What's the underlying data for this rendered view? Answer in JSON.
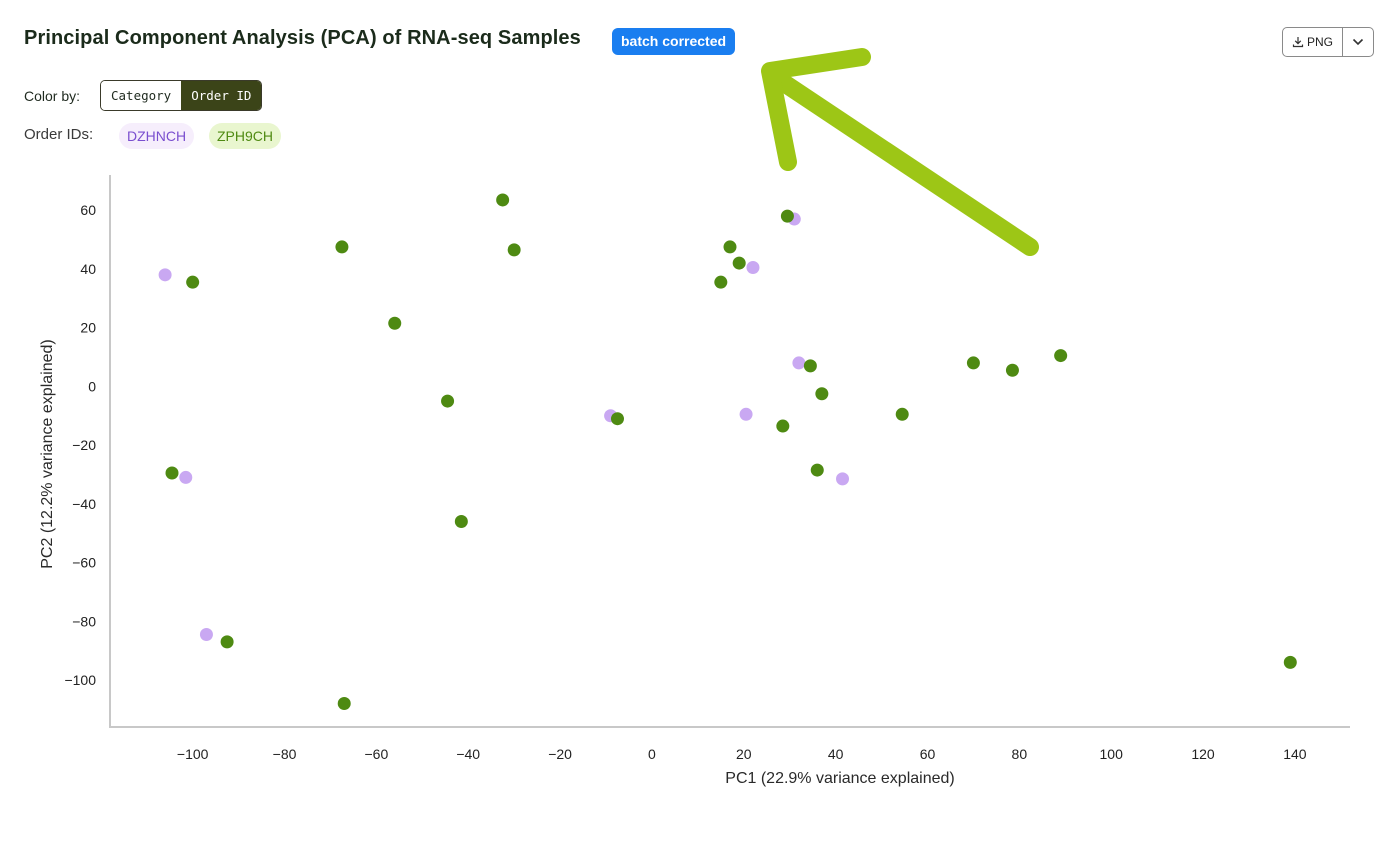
{
  "header": {
    "title": "Principal Component Analysis (PCA) of RNA-seq Samples",
    "badge": "batch corrected",
    "export_label": "PNG"
  },
  "controls": {
    "color_by_label": "Color by:",
    "options": [
      "Category",
      "Order ID"
    ],
    "selected": "Order ID",
    "order_ids_label": "Order IDs:",
    "order_ids": [
      {
        "label": "DZHNCH",
        "color": "#c9a8f2"
      },
      {
        "label": "ZPH9CH",
        "color": "#4e8a12"
      }
    ]
  },
  "annotation": {
    "arrow_color": "#9dc616"
  },
  "chart_data": {
    "type": "scatter",
    "xlabel": "PC1 (22.9% variance explained)",
    "ylabel": "PC2 (12.2% variance explained)",
    "xlim": [
      -118,
      152
    ],
    "ylim": [
      -116,
      72
    ],
    "xticks": [
      -100,
      -80,
      -60,
      -40,
      -20,
      0,
      20,
      40,
      60,
      80,
      100,
      120,
      140
    ],
    "yticks": [
      60,
      40,
      20,
      0,
      -20,
      -40,
      -60,
      -80,
      -100
    ],
    "series": [
      {
        "name": "DZHNCH",
        "color": "#c9a8f2",
        "points": [
          [
            -106,
            38
          ],
          [
            -101.5,
            -31
          ],
          [
            -97,
            -84.5
          ],
          [
            -9,
            -10
          ],
          [
            20.5,
            -9.5
          ],
          [
            22,
            40.5
          ],
          [
            31,
            57
          ],
          [
            32,
            8
          ],
          [
            41.5,
            -31.5
          ]
        ]
      },
      {
        "name": "ZPH9CH",
        "color": "#4e8a12",
        "points": [
          [
            -100,
            35.5
          ],
          [
            -104.5,
            -29.5
          ],
          [
            -92.5,
            -87
          ],
          [
            -67.5,
            47.5
          ],
          [
            -67,
            -108
          ],
          [
            -56,
            21.5
          ],
          [
            -44.5,
            -5
          ],
          [
            -41.5,
            -46
          ],
          [
            -32.5,
            63.5
          ],
          [
            -30,
            46.5
          ],
          [
            -7.5,
            -11
          ],
          [
            15,
            35.5
          ],
          [
            17,
            47.5
          ],
          [
            19,
            42
          ],
          [
            28.5,
            -13.5
          ],
          [
            29.5,
            58
          ],
          [
            34.5,
            7
          ],
          [
            36,
            -28.5
          ],
          [
            37,
            -2.5
          ],
          [
            54.5,
            -9.5
          ],
          [
            70,
            8
          ],
          [
            78.5,
            5.5
          ],
          [
            89,
            10.5
          ],
          [
            139,
            -94
          ]
        ]
      }
    ]
  }
}
